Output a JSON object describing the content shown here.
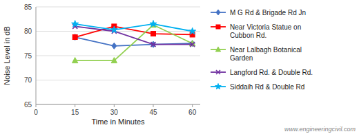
{
  "chart_data": {
    "type": "line",
    "xlabel": "Time in Minutes",
    "ylabel": "Noise Level in dB",
    "x": [
      15,
      30,
      45,
      60
    ],
    "series": [
      {
        "name": "M G Rd & Brigade Rd Jn",
        "color": "#4472C4",
        "marker": "diamond",
        "values": [
          78.8,
          77.0,
          77.3,
          77.5
        ]
      },
      {
        "name": "Near Victoria Statue on\nCubbon Rd.",
        "color": "#FF0000",
        "marker": "square",
        "values": [
          78.8,
          81.0,
          79.5,
          79.3
        ]
      },
      {
        "name": "Near Lalbagh Botanical\nGarden",
        "color": "#92D050",
        "marker": "triangle",
        "values": [
          74.0,
          74.0,
          81.3,
          77.5
        ]
      },
      {
        "name": "Langford Rd. & Double Rd.",
        "color": "#7030A0",
        "marker": "x",
        "values": [
          81.0,
          80.0,
          77.3,
          77.3
        ]
      },
      {
        "name": "Siddaih Rd & Double Rd",
        "color": "#00B0F0",
        "marker": "star",
        "values": [
          81.5,
          80.3,
          81.5,
          80.0
        ]
      }
    ],
    "xlim": [
      0,
      63
    ],
    "ylim": [
      65,
      85
    ],
    "xticks": [
      0,
      15,
      30,
      45,
      60
    ],
    "yticks": [
      65,
      70,
      75,
      80,
      85
    ],
    "grid": true,
    "legend": "right",
    "annotations": [
      "www.engineeringcivil.com"
    ]
  }
}
